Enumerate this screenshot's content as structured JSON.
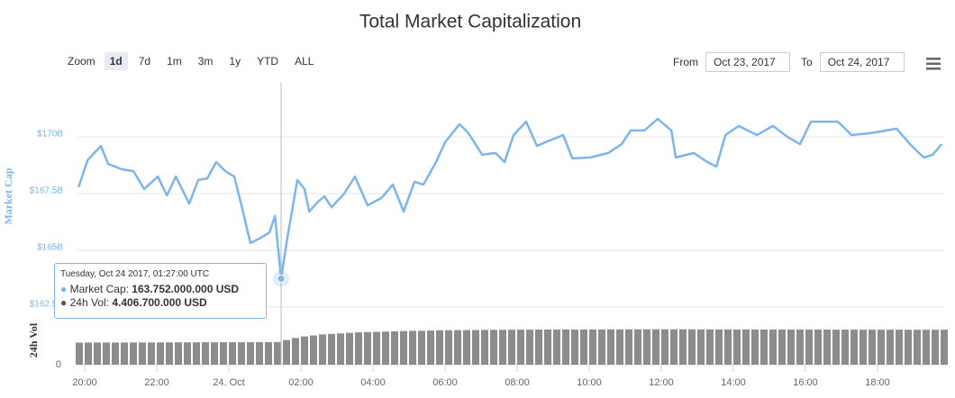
{
  "chart_data": {
    "type": "line",
    "title": "Total Market Capitalization",
    "zoom": {
      "label": "Zoom",
      "buttons": [
        "1d",
        "7d",
        "1m",
        "3m",
        "1y",
        "YTD",
        "ALL"
      ],
      "selected": 0
    },
    "range": {
      "from_label": "From",
      "from": "Oct 23, 2017",
      "to_label": "To",
      "to": "Oct 24, 2017"
    },
    "y_label": "Market Cap",
    "y2_label": "24h Vol",
    "xlim": [
      19.8,
      43.85
    ],
    "xticks": [
      {
        "value": 20,
        "label": "20:00"
      },
      {
        "value": 22,
        "label": "22:00"
      },
      {
        "value": 24,
        "label": "24. Oct"
      },
      {
        "value": 26,
        "label": "02:00"
      },
      {
        "value": 28,
        "label": "04:00"
      },
      {
        "value": 30,
        "label": "06:00"
      },
      {
        "value": 32,
        "label": "08:00"
      },
      {
        "value": 34,
        "label": "10:00"
      },
      {
        "value": 36,
        "label": "12:00"
      },
      {
        "value": 38,
        "label": "14:00"
      },
      {
        "value": 40,
        "label": "16:00"
      },
      {
        "value": 42,
        "label": "18:00"
      }
    ],
    "ylim": [
      162.3,
      172.5
    ],
    "yticks": [
      {
        "value": 162.5,
        "label": "$162.5B"
      },
      {
        "value": 165,
        "label": "$165B"
      },
      {
        "value": 167.5,
        "label": "$167.5B"
      },
      {
        "value": 170,
        "label": "$170B"
      }
    ],
    "y2lim": [
      0,
      9.3
    ],
    "y2ticks": [
      0
    ],
    "grid": true,
    "crosshair_x": 25.45,
    "series": [
      {
        "color": "#7cb5ec",
        "x": [
          19.83,
          20.08,
          20.45,
          20.65,
          21.03,
          21.35,
          21.65,
          22.03,
          22.28,
          22.53,
          22.9,
          23.15,
          23.4,
          23.65,
          23.9,
          24.15,
          24.35,
          24.6,
          24.85,
          25.13,
          25.28,
          25.45,
          25.6,
          25.9,
          26.1,
          26.23,
          26.45,
          26.65,
          26.85,
          27.2,
          27.5,
          27.85,
          28.23,
          28.55,
          28.85,
          29.15,
          29.4,
          29.75,
          30.0,
          30.4,
          30.65,
          31.03,
          31.4,
          31.65,
          31.9,
          32.25,
          32.55,
          32.78,
          33.28,
          33.53,
          34.03,
          34.53,
          34.9,
          35.15,
          35.53,
          35.9,
          36.28,
          36.4,
          36.9,
          37.28,
          37.53,
          37.78,
          38.15,
          38.65,
          39.1,
          39.5,
          39.85,
          40.15,
          40.4,
          40.9,
          41.28,
          41.78,
          42.53,
          42.9,
          43.28,
          43.53,
          43.78
        ],
        "values": [
          167.78,
          168.97,
          169.6,
          168.81,
          168.57,
          168.49,
          167.7,
          168.25,
          167.42,
          168.25,
          167.06,
          168.1,
          168.17,
          168.89,
          168.49,
          168.25,
          166.98,
          165.32,
          165.52,
          165.79,
          166.51,
          163.752,
          165.32,
          168.1,
          167.7,
          166.71,
          167.1,
          167.38,
          166.9,
          167.5,
          168.25,
          166.98,
          167.3,
          167.9,
          166.71,
          168.02,
          167.9,
          168.89,
          169.76,
          170.56,
          170.16,
          169.21,
          169.29,
          168.89,
          170.08,
          170.67,
          169.6,
          169.76,
          170.08,
          169.05,
          169.09,
          169.29,
          169.68,
          170.28,
          170.28,
          170.79,
          170.28,
          169.09,
          169.29,
          168.89,
          168.69,
          170.08,
          170.48,
          170.08,
          170.48,
          170.0,
          169.68,
          170.67,
          170.67,
          170.67,
          170.08,
          170.16,
          170.36,
          169.68,
          169.09,
          169.21,
          169.68
        ]
      },
      {
        "color": "#8c8c8c",
        "axis": "y2",
        "x": [
          19.85,
          20.1,
          20.35,
          20.6,
          20.85,
          21.1,
          21.35,
          21.6,
          21.85,
          22.1,
          22.35,
          22.6,
          22.85,
          23.1,
          23.35,
          23.6,
          23.85,
          24.1,
          24.35,
          24.6,
          24.85,
          25.1,
          25.35,
          25.6,
          25.85,
          26.1,
          26.35,
          26.6,
          26.85,
          27.1,
          27.35,
          27.6,
          27.85,
          28.1,
          28.35,
          28.6,
          28.85,
          29.1,
          29.35,
          29.6,
          29.85,
          30.1,
          30.35,
          30.6,
          30.85,
          31.1,
          31.35,
          31.6,
          31.85,
          32.1,
          32.35,
          32.6,
          32.85,
          33.1,
          33.35,
          33.6,
          33.85,
          34.1,
          34.35,
          34.6,
          34.85,
          35.1,
          35.35,
          35.6,
          35.85,
          36.1,
          36.35,
          36.6,
          36.85,
          37.1,
          37.35,
          37.6,
          37.85,
          38.1,
          38.35,
          38.6,
          38.85,
          39.1,
          39.35,
          39.6,
          39.85,
          40.1,
          40.35,
          40.6,
          40.85,
          41.1,
          41.35,
          41.6,
          41.85,
          42.1,
          42.35,
          42.6,
          42.85,
          43.1,
          43.35,
          43.6,
          43.85
        ],
        "values": [
          4.3,
          4.31,
          4.31,
          4.32,
          4.32,
          4.32,
          4.33,
          4.33,
          4.33,
          4.34,
          4.34,
          4.35,
          4.35,
          4.35,
          4.36,
          4.36,
          4.37,
          4.37,
          4.38,
          4.39,
          4.4,
          4.4,
          4.41,
          4.8,
          5.2,
          5.5,
          5.7,
          5.9,
          6.0,
          6.1,
          6.2,
          6.3,
          6.35,
          6.4,
          6.45,
          6.5,
          6.55,
          6.6,
          6.6,
          6.65,
          6.7,
          6.72,
          6.74,
          6.75,
          6.76,
          6.78,
          6.8,
          6.8,
          6.82,
          6.83,
          6.83,
          6.84,
          6.85,
          6.85,
          6.86,
          6.86,
          6.86,
          6.87,
          6.87,
          6.88,
          6.88,
          6.88,
          6.89,
          6.89,
          6.9,
          6.9,
          6.9,
          6.9,
          6.89,
          6.88,
          6.88,
          6.87,
          6.87,
          6.86,
          6.86,
          6.86,
          6.85,
          6.85,
          6.85,
          6.84,
          6.84,
          6.84,
          6.84,
          6.83,
          6.83,
          6.83,
          6.83,
          6.82,
          6.82,
          6.82,
          6.82,
          6.82,
          6.81,
          6.81,
          6.81,
          6.81,
          6.81
        ]
      }
    ],
    "tooltip": {
      "header": "Tuesday, Oct 24 2017, 01:27:00 UTC",
      "rows": [
        {
          "label": "Market Cap:",
          "value": "163.752.000.000 USD"
        },
        {
          "label": "24h Vol:",
          "value": "4.406.700.000 USD"
        }
      ]
    }
  }
}
